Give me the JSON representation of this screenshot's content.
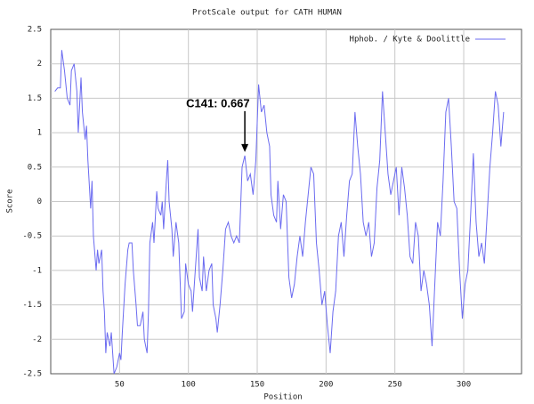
{
  "chart_data": {
    "type": "line",
    "title": "ProtScale output for CATH HUMAN",
    "xlabel": "Position",
    "ylabel": "Score",
    "annotation": "C141: 0.667",
    "annotation_x": 141,
    "xlim": [
      0,
      342
    ],
    "ylim": [
      -2.5,
      2.5
    ],
    "xticks": [
      50,
      100,
      150,
      200,
      250,
      300
    ],
    "yticks": [
      -2.5,
      -2,
      -1.5,
      -1,
      -0.5,
      0,
      0.5,
      1,
      1.5,
      2,
      2.5
    ],
    "grid": true,
    "legend": "top-right",
    "x": [
      3,
      5,
      7,
      8,
      10,
      12,
      14,
      15,
      17,
      19,
      20,
      22,
      23,
      25,
      26,
      27,
      29,
      30,
      31,
      33,
      34,
      35,
      37,
      38,
      39,
      40,
      41,
      43,
      44,
      46,
      48,
      50,
      51,
      52,
      54,
      56,
      57,
      59,
      60,
      62,
      63,
      65,
      67,
      68,
      70,
      71,
      72,
      74,
      75,
      77,
      78,
      80,
      81,
      82,
      84,
      85,
      86,
      88,
      89,
      91,
      93,
      95,
      97,
      98,
      100,
      102,
      103,
      105,
      107,
      108,
      110,
      111,
      113,
      115,
      117,
      118,
      120,
      121,
      123,
      125,
      127,
      129,
      131,
      133,
      135,
      137,
      139,
      141,
      143,
      145,
      147,
      149,
      151,
      153,
      155,
      157,
      159,
      160,
      162,
      164,
      165,
      167,
      169,
      171,
      173,
      175,
      177,
      179,
      181,
      183,
      185,
      187,
      189,
      191,
      193,
      195,
      197,
      199,
      201,
      203,
      205,
      207,
      209,
      211,
      213,
      215,
      217,
      219,
      221,
      223,
      225,
      227,
      229,
      231,
      233,
      235,
      237,
      239,
      241,
      243,
      245,
      247,
      249,
      251,
      253,
      255,
      257,
      259,
      261,
      263,
      265,
      267,
      269,
      271,
      273,
      275,
      277,
      279,
      281,
      283,
      285,
      287,
      289,
      291,
      293,
      295,
      297,
      299,
      301,
      303,
      305,
      307,
      309,
      311,
      313,
      315,
      317,
      319,
      321,
      323,
      325,
      327,
      329
    ],
    "series": [
      {
        "name": "Hphob. / Kyte & Doolittle",
        "color": "#6b6bf0",
        "values": [
          1.6,
          1.65,
          1.65,
          2.2,
          1.9,
          1.5,
          1.4,
          1.9,
          2.0,
          1.6,
          1.0,
          1.8,
          1.3,
          0.9,
          1.1,
          0.6,
          -0.1,
          0.3,
          -0.5,
          -1.0,
          -0.7,
          -0.9,
          -0.7,
          -1.3,
          -1.6,
          -2.2,
          -1.9,
          -2.1,
          -1.9,
          -2.5,
          -2.4,
          -2.2,
          -2.3,
          -1.9,
          -1.2,
          -0.7,
          -0.6,
          -0.6,
          -1.0,
          -1.5,
          -1.8,
          -1.8,
          -1.6,
          -2.0,
          -2.2,
          -1.6,
          -0.6,
          -0.3,
          -0.6,
          0.15,
          -0.1,
          -0.2,
          0.0,
          -0.4,
          0.3,
          0.6,
          0.0,
          -0.4,
          -0.8,
          -0.3,
          -0.6,
          -1.7,
          -1.6,
          -0.9,
          -1.2,
          -1.3,
          -1.6,
          -1.0,
          -0.4,
          -1.1,
          -1.3,
          -0.8,
          -1.3,
          -1.0,
          -0.9,
          -1.5,
          -1.7,
          -1.9,
          -1.5,
          -1.0,
          -0.4,
          -0.3,
          -0.5,
          -0.6,
          -0.5,
          -0.6,
          0.5,
          0.667,
          0.3,
          0.4,
          0.1,
          0.6,
          1.7,
          1.3,
          1.4,
          1.0,
          0.8,
          0.1,
          -0.2,
          -0.3,
          0.3,
          -0.4,
          0.1,
          0.0,
          -1.1,
          -1.4,
          -1.2,
          -0.8,
          -0.5,
          -0.8,
          -0.3,
          0.1,
          0.5,
          0.4,
          -0.6,
          -1.0,
          -1.5,
          -1.3,
          -1.8,
          -2.2,
          -1.6,
          -1.3,
          -0.5,
          -0.3,
          -0.8,
          -0.2,
          0.3,
          0.4,
          1.3,
          0.8,
          0.4,
          -0.3,
          -0.5,
          -0.3,
          -0.8,
          -0.6,
          0.2,
          0.6,
          1.6,
          1.0,
          0.4,
          0.1,
          0.3,
          0.5,
          -0.2,
          0.5,
          0.2,
          -0.2,
          -0.8,
          -0.9,
          -0.3,
          -0.5,
          -1.3,
          -1.0,
          -1.2,
          -1.5,
          -2.1,
          -1.2,
          -0.3,
          -0.5,
          0.3,
          1.3,
          1.5,
          0.8,
          0.0,
          -0.1,
          -1.0,
          -1.7,
          -1.2,
          -1.0,
          -0.2,
          0.7,
          -0.3,
          -0.8,
          -0.6,
          -0.9,
          -0.2,
          0.5,
          1.0,
          1.6,
          1.4,
          0.8,
          1.3
        ]
      }
    ]
  }
}
